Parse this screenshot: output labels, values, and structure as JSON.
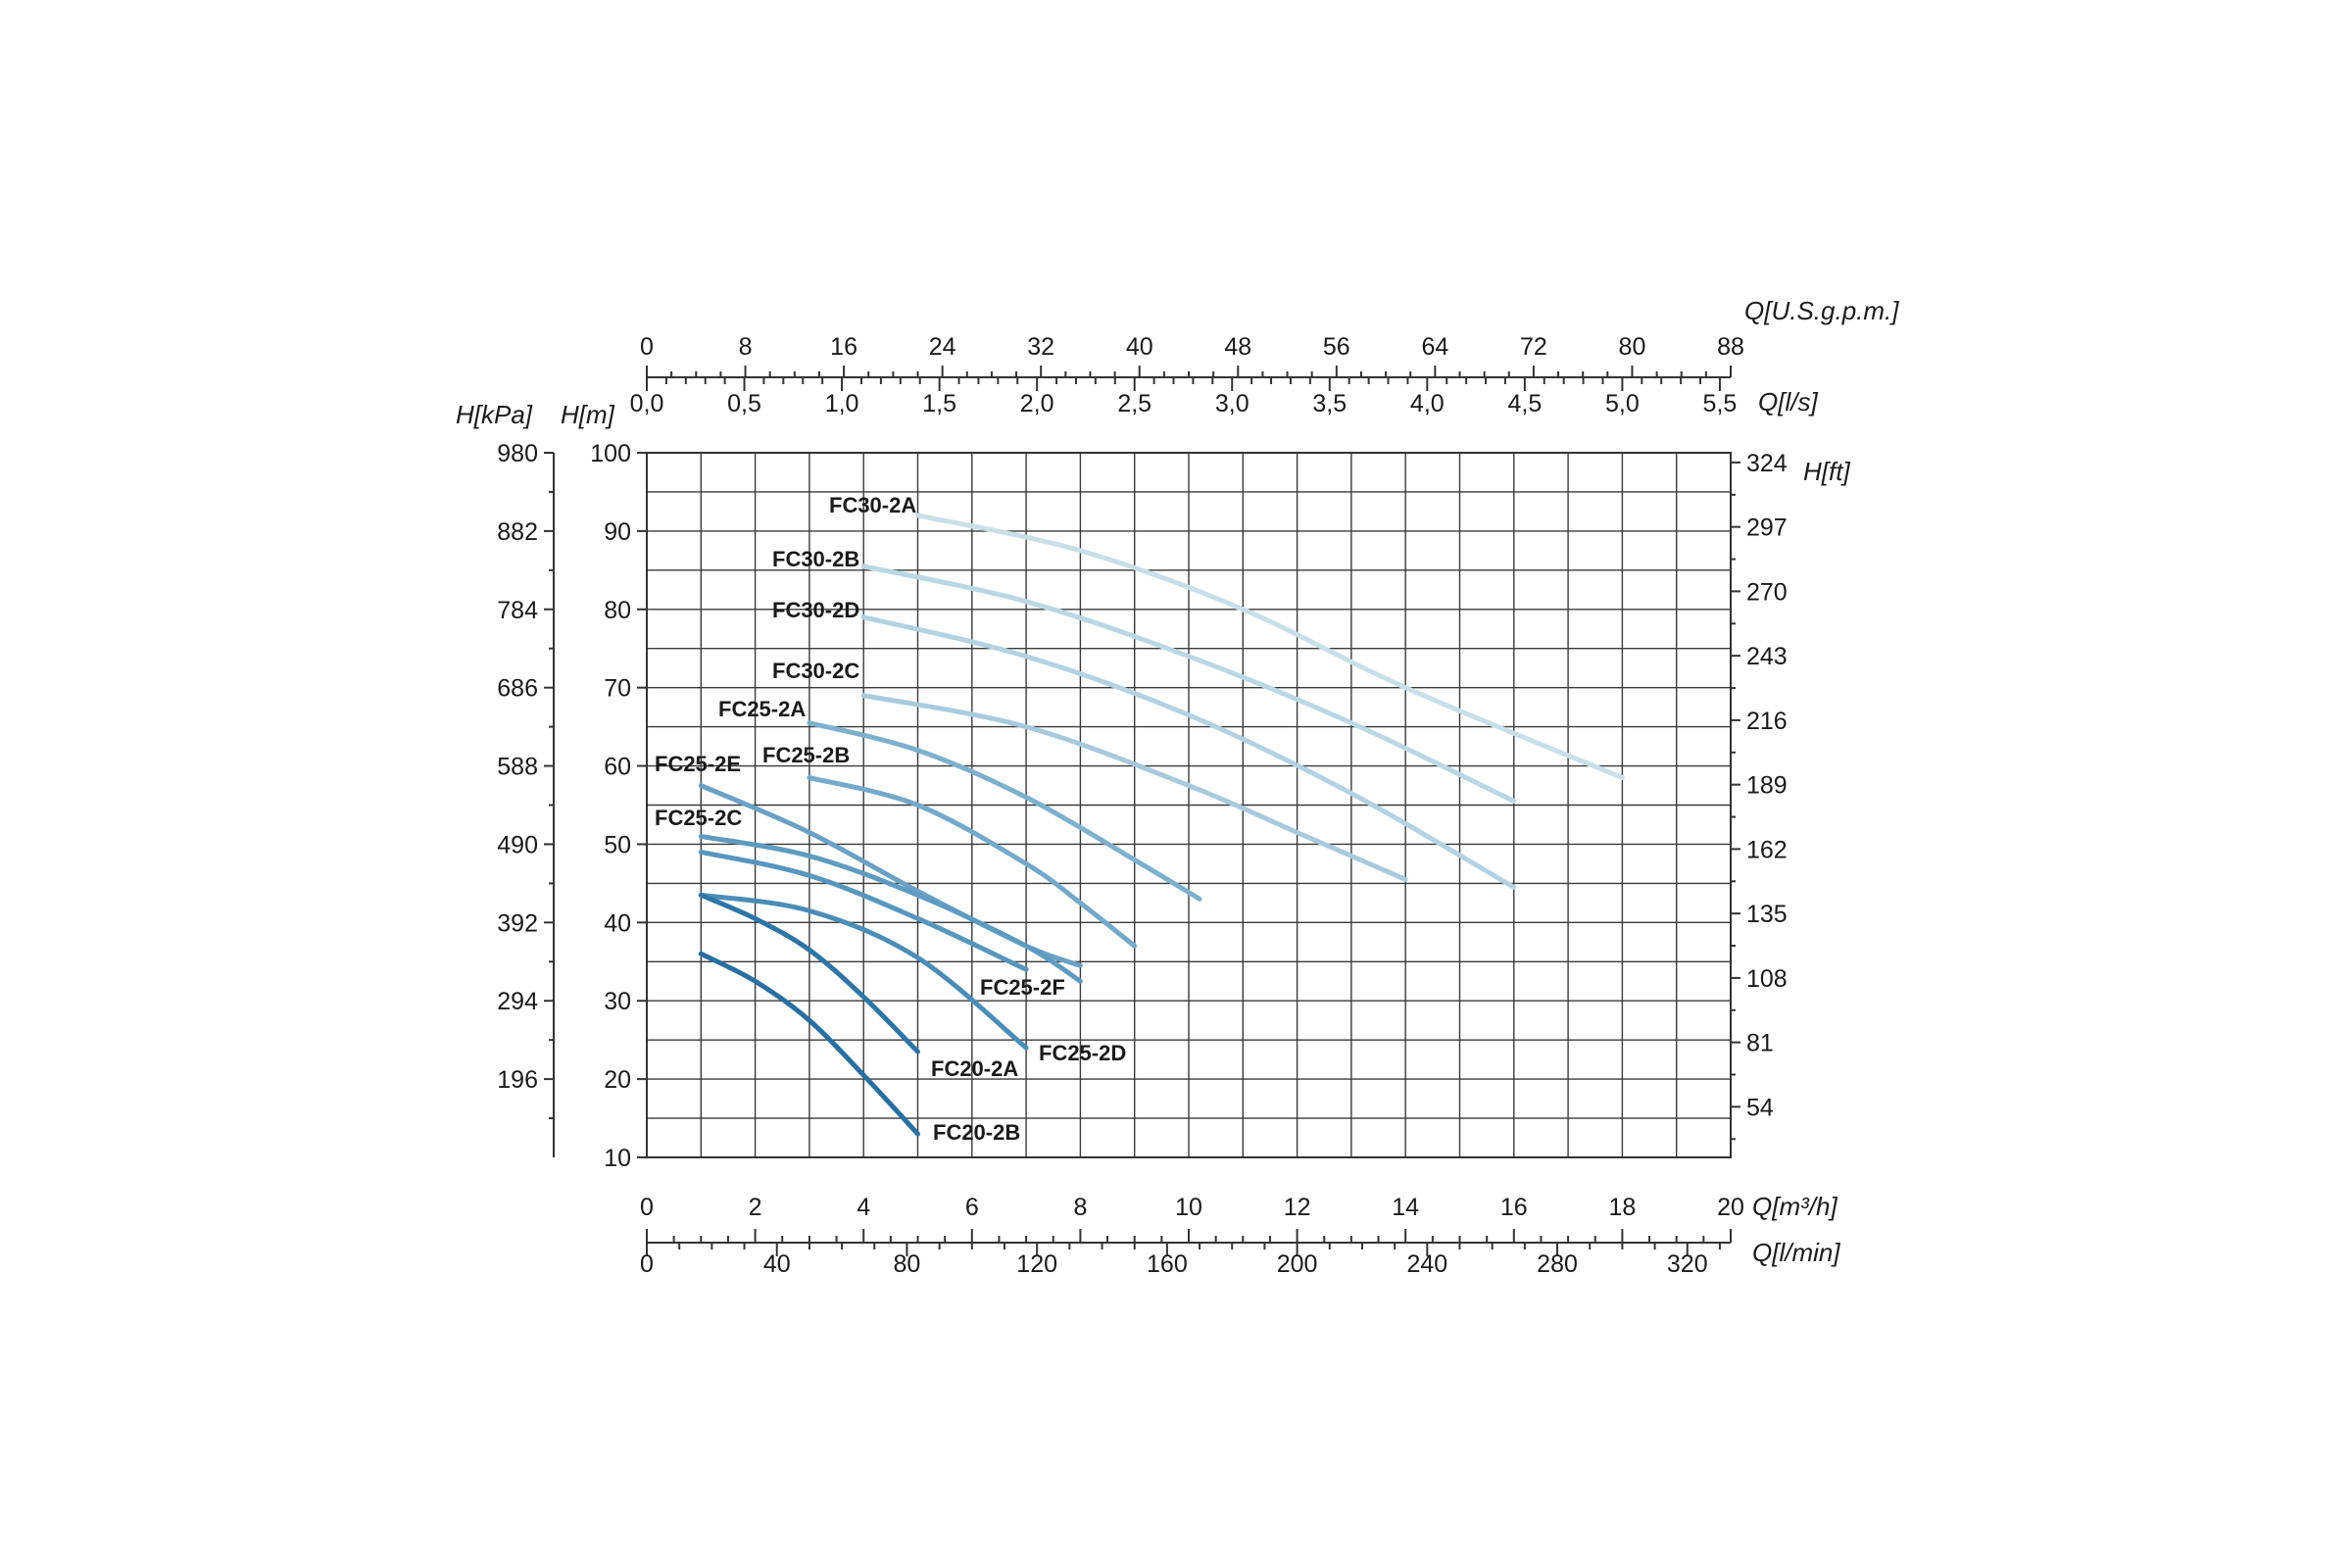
{
  "chart_data": {
    "type": "line",
    "grid": true,
    "legend": "inline curve labels",
    "x_axes": {
      "bottom_primary": {
        "label": "Q[m³/h]",
        "range": [
          0,
          20
        ],
        "ticks": [
          "0",
          "2",
          "4",
          "6",
          "8",
          "10",
          "12",
          "14",
          "16",
          "18",
          "20"
        ]
      },
      "bottom_secondary": {
        "label": "Q[l/min]",
        "range": [
          0,
          333.33
        ],
        "ticks": [
          "0",
          "40",
          "80",
          "120",
          "160",
          "200",
          "240",
          "280",
          "320"
        ]
      },
      "top_inner": {
        "label": "Q[l/s]",
        "range": [
          0,
          5.556
        ],
        "ticks": [
          "0,0",
          "0,5",
          "1,0",
          "1,5",
          "2,0",
          "2,5",
          "3,0",
          "3,5",
          "4,0",
          "4,5",
          "5,0",
          "5,5"
        ]
      },
      "top_outer": {
        "label": "Q[U.S.g.p.m.]",
        "range": [
          0,
          88
        ],
        "ticks": [
          "0",
          "8",
          "16",
          "24",
          "32",
          "40",
          "48",
          "56",
          "64",
          "72",
          "80",
          "88"
        ]
      }
    },
    "y_axes": {
      "left_m": {
        "label": "H[m]",
        "range": [
          10,
          100
        ],
        "ticks": [
          "10",
          "20",
          "30",
          "40",
          "50",
          "60",
          "70",
          "80",
          "90",
          "100"
        ]
      },
      "left_kpa": {
        "label": "H[kPa]",
        "ticks": [
          {
            "label": "196",
            "h_m": 20
          },
          {
            "label": "294",
            "h_m": 30
          },
          {
            "label": "392",
            "h_m": 40
          },
          {
            "label": "490",
            "h_m": 50
          },
          {
            "label": "588",
            "h_m": 60
          },
          {
            "label": "686",
            "h_m": 70
          },
          {
            "label": "784",
            "h_m": 80
          },
          {
            "label": "882",
            "h_m": 90
          },
          {
            "label": "980",
            "h_m": 100
          }
        ]
      },
      "right_ft": {
        "label": "H[ft]",
        "ticks": [
          {
            "label": "54",
            "h_m": 16.46
          },
          {
            "label": "81",
            "h_m": 24.69
          },
          {
            "label": "108",
            "h_m": 32.92
          },
          {
            "label": "135",
            "h_m": 41.15
          },
          {
            "label": "162",
            "h_m": 49.38
          },
          {
            "label": "189",
            "h_m": 57.61
          },
          {
            "label": "216",
            "h_m": 65.84
          },
          {
            "label": "243",
            "h_m": 74.07
          },
          {
            "label": "270",
            "h_m": 82.3
          },
          {
            "label": "297",
            "h_m": 90.53
          },
          {
            "label": "324",
            "h_m": 98.76
          }
        ]
      }
    },
    "series": [
      {
        "name": "FC30-2A",
        "color": "#c9dfe8",
        "x": [
          5,
          8,
          11,
          14,
          18
        ],
        "y": [
          92,
          87.5,
          80,
          70,
          58.5
        ]
      },
      {
        "name": "FC30-2B",
        "color": "#bcd7e4",
        "x": [
          4,
          7,
          10,
          13,
          16
        ],
        "y": [
          85.5,
          81,
          74,
          65.5,
          55.5
        ]
      },
      {
        "name": "FC30-2D",
        "color": "#b4d2e1",
        "x": [
          4,
          7,
          10,
          13,
          16
        ],
        "y": [
          79,
          74,
          66.5,
          56.5,
          44.5
        ]
      },
      {
        "name": "FC30-2C",
        "color": "#a8cadd",
        "x": [
          4,
          7,
          10,
          12,
          14
        ],
        "y": [
          69,
          65,
          57.5,
          51.5,
          45.5
        ]
      },
      {
        "name": "FC25-2A",
        "color": "#7eb0cd",
        "x": [
          3,
          5,
          7,
          9,
          10.2
        ],
        "y": [
          65.5,
          62,
          56,
          48,
          43
        ]
      },
      {
        "name": "FC25-2B",
        "color": "#74a9c9",
        "x": [
          3,
          5,
          7,
          8,
          9
        ],
        "y": [
          58.5,
          55,
          47.5,
          42.5,
          37
        ]
      },
      {
        "name": "FC25-2E",
        "color": "#6aa1c5",
        "x": [
          1,
          3,
          5,
          7,
          8
        ],
        "y": [
          57.5,
          51.5,
          44,
          37,
          34.5
        ]
      },
      {
        "name": "FC25-2C",
        "color": "#5f9bc0",
        "x": [
          1,
          3,
          5,
          7,
          8
        ],
        "y": [
          51,
          48.5,
          43.5,
          37,
          32.5
        ]
      },
      {
        "name": "FC25-2F",
        "color": "#5896bd",
        "x": [
          1,
          3,
          5,
          7
        ],
        "y": [
          49,
          46,
          40.5,
          34
        ]
      },
      {
        "name": "FC25-2D",
        "color": "#4b8db7",
        "x": [
          1,
          3,
          5,
          7
        ],
        "y": [
          43.5,
          41.5,
          35.5,
          24
        ]
      },
      {
        "name": "FC20-2A",
        "color": "#2f75a6",
        "x": [
          1,
          2,
          3,
          4,
          5
        ],
        "y": [
          43.5,
          40.5,
          36.5,
          30.5,
          23.5
        ]
      },
      {
        "name": "FC20-2B",
        "color": "#2a6fa0",
        "x": [
          1,
          2,
          3,
          4,
          5
        ],
        "y": [
          36,
          32.5,
          27.5,
          20.5,
          13
        ]
      }
    ]
  }
}
